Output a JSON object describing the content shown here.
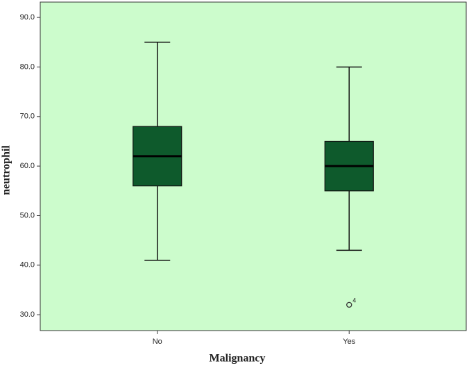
{
  "chart_data": {
    "type": "box",
    "x_label": "Malignancy",
    "y_label": "neutrophil",
    "categories": [
      "No",
      "Yes"
    ],
    "boxes": [
      {
        "whislo": 41,
        "q1": 56,
        "med": 62,
        "q3": 68,
        "whishi": 85,
        "fliers": [],
        "flier_labels": []
      },
      {
        "whislo": 43,
        "q1": 55,
        "med": 60,
        "q3": 65,
        "whishi": 80,
        "fliers": [
          32
        ],
        "flier_labels": [
          "4"
        ]
      }
    ],
    "color": "#0e5a2c",
    "background": "#ccfccc",
    "ylim": [
      26.8,
      93.1
    ],
    "yticks": [
      {
        "value": 30,
        "label": "30.0"
      },
      {
        "value": 40,
        "label": "40.0"
      },
      {
        "value": 50,
        "label": "50.0"
      },
      {
        "value": 60,
        "label": "60.0"
      },
      {
        "value": 70,
        "label": "70.0"
      },
      {
        "value": 80,
        "label": "80.0"
      },
      {
        "value": 90,
        "label": "90.0"
      }
    ]
  }
}
